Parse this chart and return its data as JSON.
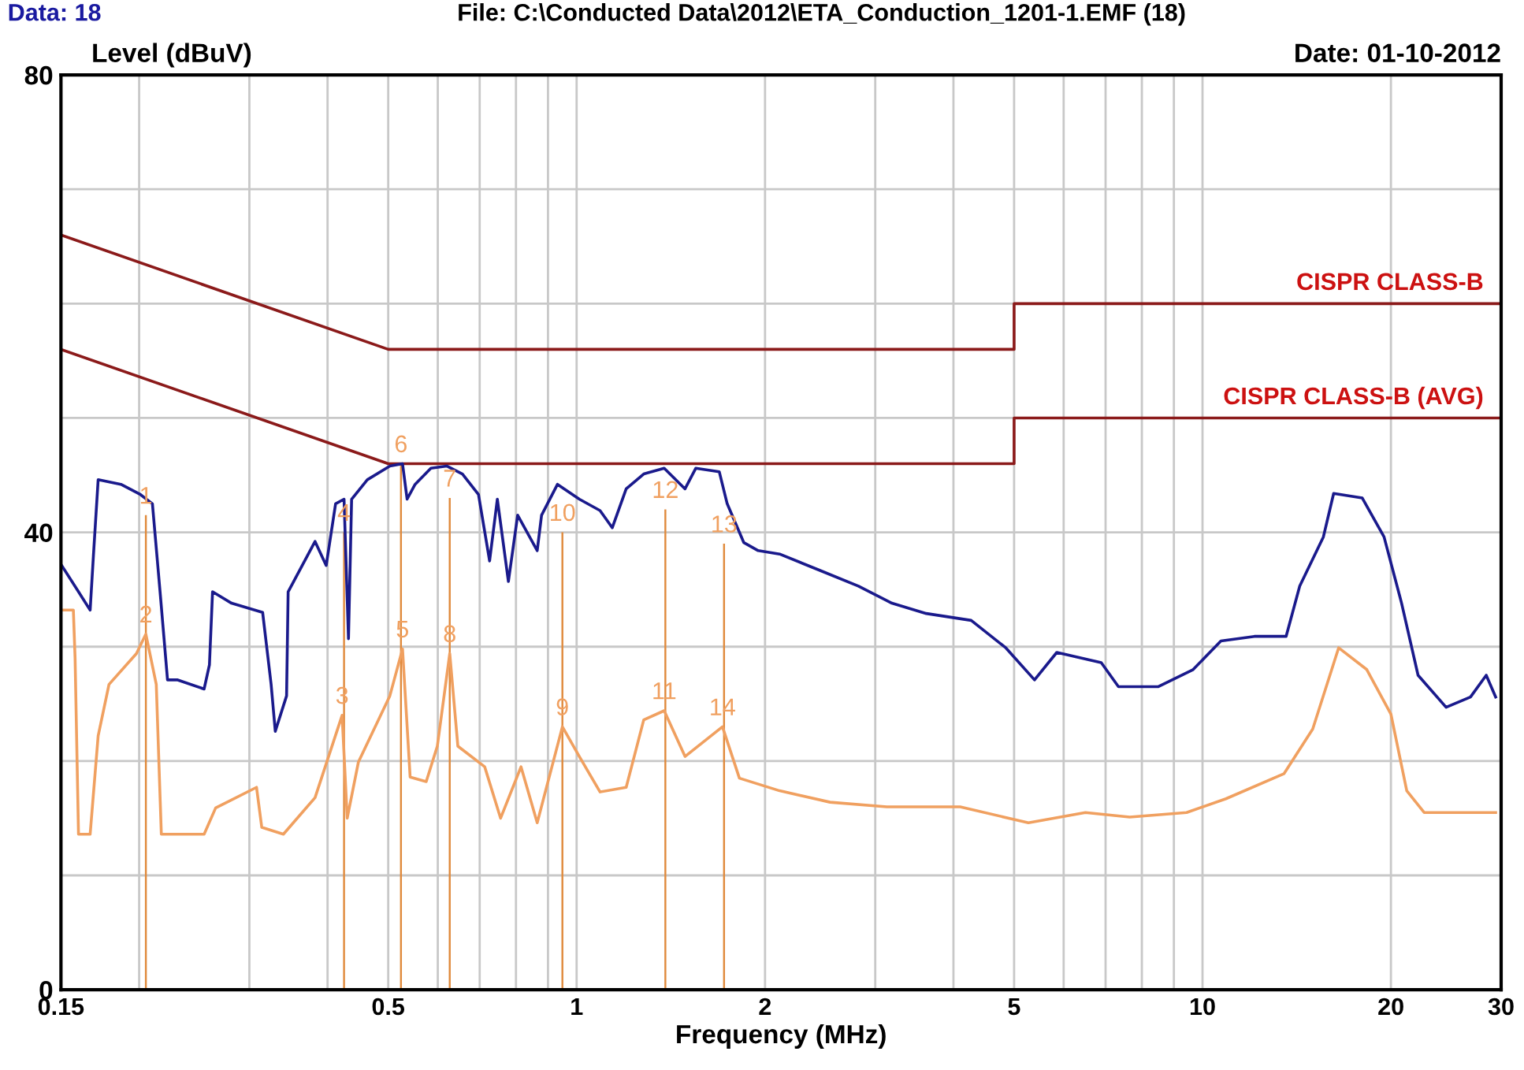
{
  "chart_data": {
    "type": "line",
    "title": "File: C:\\Conducted Data\\2012\\ETA_Conduction_1201-1.EMF (18)",
    "ylabel": "Level (dBuV)",
    "xlabel": "Frequency (MHz)",
    "annotations": [
      "Data: 18",
      "Date: 01-10-2012",
      {
        "text": "1",
        "x": 0.205,
        "y": 41.5
      },
      {
        "text": "2",
        "x": 0.205,
        "y": 31.1
      },
      {
        "text": "3",
        "x": 0.422,
        "y": 24.0
      },
      {
        "text": "4",
        "x": 0.425,
        "y": 40
      },
      {
        "text": "5",
        "x": 0.527,
        "y": 29.8
      },
      {
        "text": "6",
        "x": 0.524,
        "y": 46
      },
      {
        "text": "7",
        "x": 0.627,
        "y": 43
      },
      {
        "text": "8",
        "x": 0.627,
        "y": 29.4
      },
      {
        "text": "9",
        "x": 0.949,
        "y": 23.0
      },
      {
        "text": "10",
        "x": 0.949,
        "y": 40
      },
      {
        "text": "11",
        "x": 1.38,
        "y": 24.4
      },
      {
        "text": "12",
        "x": 1.386,
        "y": 42
      },
      {
        "text": "13",
        "x": 1.72,
        "y": 39
      },
      {
        "text": "14",
        "x": 1.71,
        "y": 23.0
      }
    ],
    "log": "x",
    "grid": true,
    "xlim": [
      0.15,
      30
    ],
    "ylim": [
      0,
      80
    ],
    "xticks": [
      0.15,
      {
        "value": 0.2,
        "label": null
      },
      {
        "value": 0.3,
        "label": null
      },
      {
        "value": 0.4,
        "label": null
      },
      0.5,
      {
        "value": 0.6,
        "label": null
      },
      {
        "value": 0.7,
        "label": null
      },
      {
        "value": 0.8,
        "label": null
      },
      {
        "value": 0.9,
        "label": null
      },
      1,
      2,
      {
        "value": 3,
        "label": null
      },
      {
        "value": 4,
        "label": null
      },
      5,
      {
        "value": 6,
        "label": null
      },
      {
        "value": 7,
        "label": null
      },
      {
        "value": 8,
        "label": null
      },
      {
        "value": 9,
        "label": null
      },
      10,
      20,
      30
    ],
    "yticks": [
      0,
      {
        "value": 10,
        "label": null
      },
      {
        "value": 20,
        "label": null
      },
      {
        "value": 30,
        "label": null
      },
      40,
      {
        "value": 50,
        "label": null
      },
      {
        "value": 60,
        "label": null
      },
      {
        "value": 70,
        "label": null
      },
      80
    ],
    "series": [
      {
        "name": "CISPR CLASS-B",
        "color": "#8b1a1a",
        "x": [
          0.15,
          0.5,
          5,
          5,
          30
        ],
        "values": [
          66,
          56,
          56,
          60,
          60
        ]
      },
      {
        "name": "CISPR CLASS-B (AVG)",
        "color": "#8b1a1a",
        "x": [
          0.15,
          0.5,
          5,
          5,
          30
        ],
        "values": [
          56,
          46,
          46,
          50,
          50
        ]
      },
      {
        "color": "#1a1a8c",
        "x": [
          0.15,
          0.16,
          0.167,
          0.169,
          0.172,
          0.187,
          0.201,
          0.21,
          0.216,
          0.222,
          0.23,
          0.254,
          0.259,
          0.262,
          0.281,
          0.315,
          0.325,
          0.33,
          0.344,
          0.346,
          0.382,
          0.398,
          0.412,
          0.425,
          0.432,
          0.437,
          0.463,
          0.503,
          0.527,
          0.536,
          0.552,
          0.585,
          0.62,
          0.657,
          0.697,
          0.726,
          0.747,
          0.778,
          0.805,
          0.865,
          0.879,
          0.932,
          1.01,
          1.09,
          1.14,
          1.2,
          1.28,
          1.38,
          1.49,
          1.55,
          1.69,
          1.74,
          1.85,
          1.95,
          2.11,
          2.44,
          2.82,
          3.19,
          3.62,
          4.27,
          4.85,
          5.39,
          5.85,
          6.89,
          7.34,
          8.49,
          9.66,
          10.7,
          12.1,
          13.6,
          14.3,
          15.6,
          16.2,
          18.0,
          19.5,
          20.8,
          22.1,
          24.5,
          26.8,
          28.4,
          29.4
        ],
        "values": [
          37.2,
          34.8,
          33.2,
          37.9,
          44.6,
          44.2,
          43.3,
          42.5,
          34.8,
          27.1,
          27.1,
          26.3,
          28.4,
          34.8,
          33.8,
          33.0,
          26.7,
          22.6,
          25.7,
          34.8,
          39.2,
          37.1,
          42.5,
          42.9,
          30.7,
          42.9,
          44.6,
          45.8,
          46.0,
          42.9,
          44.2,
          45.6,
          45.8,
          45.1,
          43.3,
          37.5,
          42.9,
          35.7,
          41.5,
          38.4,
          41.5,
          44.2,
          42.9,
          41.9,
          40.4,
          43.8,
          45.1,
          45.6,
          43.8,
          45.6,
          45.3,
          42.5,
          39.1,
          38.4,
          38.1,
          36.7,
          35.3,
          33.8,
          32.9,
          32.3,
          29.9,
          27.1,
          29.5,
          28.6,
          26.5,
          26.5,
          28.0,
          30.5,
          30.9,
          30.9,
          35.3,
          39.6,
          43.4,
          43.0,
          39.6,
          33.8,
          27.5,
          24.7,
          25.6,
          27.5,
          25.6
        ]
      },
      {
        "color": "#f0a060",
        "x": [
          0.15,
          0.157,
          0.158,
          0.16,
          0.167,
          0.172,
          0.179,
          0.198,
          0.205,
          0.213,
          0.217,
          0.254,
          0.265,
          0.308,
          0.314,
          0.34,
          0.382,
          0.422,
          0.43,
          0.448,
          0.503,
          0.527,
          0.542,
          0.575,
          0.599,
          0.627,
          0.646,
          0.713,
          0.756,
          0.815,
          0.865,
          0.949,
          1.01,
          1.09,
          1.2,
          1.28,
          1.38,
          1.49,
          1.71,
          1.82,
          2.11,
          2.54,
          3.13,
          4.1,
          5.27,
          6.5,
          7.65,
          9.43,
          10.9,
          13.5,
          15.0,
          16.5,
          18.3,
          20.0,
          21.2,
          22.6,
          29.4
        ],
        "values": [
          33.2,
          33.2,
          29.0,
          13.6,
          13.6,
          22.2,
          26.7,
          29.4,
          31.1,
          26.7,
          13.6,
          13.6,
          15.9,
          17.7,
          14.2,
          13.6,
          16.8,
          24.0,
          15.0,
          19.9,
          25.7,
          29.8,
          18.6,
          18.2,
          21.3,
          29.4,
          21.3,
          19.5,
          15.0,
          19.5,
          14.6,
          23.0,
          20.4,
          17.3,
          17.7,
          23.6,
          24.4,
          20.4,
          23.0,
          18.5,
          17.4,
          16.4,
          16.0,
          16.0,
          14.6,
          15.5,
          15.1,
          15.5,
          16.7,
          18.9,
          22.8,
          29.9,
          28.0,
          24.1,
          17.4,
          15.5,
          15.5
        ]
      },
      {
        "type": "bar",
        "color": "#e08a3c",
        "x": [
          0.205,
          0.425,
          0.524,
          0.627,
          0.949,
          1.386,
          1.72
        ],
        "values": [
          41.5,
          40,
          46,
          43,
          40,
          42,
          39
        ]
      }
    ]
  }
}
